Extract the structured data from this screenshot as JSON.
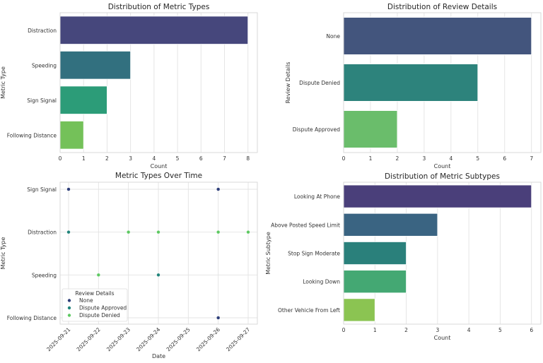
{
  "chart_data": [
    {
      "id": "metric-types",
      "type": "bar",
      "orientation": "horizontal",
      "title": "Distribution of Metric Types",
      "xlabel": "Count",
      "ylabel": "Metric Type",
      "categories": [
        "Distraction",
        "Speeding",
        "Sign Signal",
        "Following Distance"
      ],
      "values": [
        8,
        3,
        2,
        1
      ],
      "colors": [
        "#46477c",
        "#32707f",
        "#2c9c78",
        "#74c159"
      ],
      "xlim": [
        0,
        8.4
      ],
      "xticks": [
        0,
        1,
        2,
        3,
        4,
        5,
        6,
        7,
        8
      ],
      "grid": true
    },
    {
      "id": "review-details",
      "type": "bar",
      "orientation": "horizontal",
      "title": "Distribution of Review Details",
      "xlabel": "Count",
      "ylabel": "Review Details",
      "categories": [
        "None",
        "Dispute Denied",
        "Dispute Approved"
      ],
      "values": [
        7,
        5,
        2
      ],
      "colors": [
        "#43557d",
        "#2d837c",
        "#6abd6b"
      ],
      "xlim": [
        0,
        7.35
      ],
      "xticks": [
        0,
        1,
        2,
        3,
        4,
        5,
        6,
        7
      ],
      "grid": true
    },
    {
      "id": "metric-types-over-time",
      "type": "scatter",
      "title": "Metric Types Over Time",
      "xlabel": "Date",
      "ylabel": "Metric Type",
      "categories": [
        "Sign Signal",
        "Distraction",
        "Speeding",
        "Following Distance"
      ],
      "xticks": [
        "2025-09-21",
        "2025-09-22",
        "2025-09-23",
        "2025-09-24",
        "2025-09-25",
        "2025-09-26",
        "2025-09-27"
      ],
      "legend": {
        "title": "Review Details",
        "position": "lower-left",
        "entries": [
          {
            "label": "None",
            "color": "#2f3f7a"
          },
          {
            "label": "Dispute Approved",
            "color": "#21847b"
          },
          {
            "label": "Dispute Denied",
            "color": "#5ec962"
          }
        ]
      },
      "points": [
        {
          "date": "2025-09-21",
          "metric": "Sign Signal",
          "review": "None"
        },
        {
          "date": "2025-09-26",
          "metric": "Sign Signal",
          "review": "None"
        },
        {
          "date": "2025-09-21",
          "metric": "Distraction",
          "review": "Dispute Approved"
        },
        {
          "date": "2025-09-23",
          "metric": "Distraction",
          "review": "Dispute Denied"
        },
        {
          "date": "2025-09-24",
          "metric": "Distraction",
          "review": "Dispute Denied"
        },
        {
          "date": "2025-09-26",
          "metric": "Distraction",
          "review": "Dispute Denied"
        },
        {
          "date": "2025-09-27",
          "metric": "Distraction",
          "review": "Dispute Denied"
        },
        {
          "date": "2025-09-22",
          "metric": "Speeding",
          "review": "Dispute Denied"
        },
        {
          "date": "2025-09-24",
          "metric": "Speeding",
          "review": "Dispute Approved"
        },
        {
          "date": "2025-09-26",
          "metric": "Following Distance",
          "review": "None"
        }
      ],
      "grid": true
    },
    {
      "id": "metric-subtypes",
      "type": "bar",
      "orientation": "horizontal",
      "title": "Distribution of Metric Subtypes",
      "xlabel": "Count",
      "ylabel": "Metric Subtype",
      "categories": [
        "Looking At Phone",
        "Above Posted Speed Limit",
        "Stop Sign Moderate",
        "Looking Down",
        "Other Vehicle From Left"
      ],
      "values": [
        6,
        3,
        2,
        2,
        1
      ],
      "colors": [
        "#4a3f7a",
        "#3a6482",
        "#2a807b",
        "#44a873",
        "#8bc452"
      ],
      "xlim": [
        0,
        6.3
      ],
      "xticks": [
        0,
        1,
        2,
        3,
        4,
        5,
        6
      ],
      "grid": true
    }
  ]
}
